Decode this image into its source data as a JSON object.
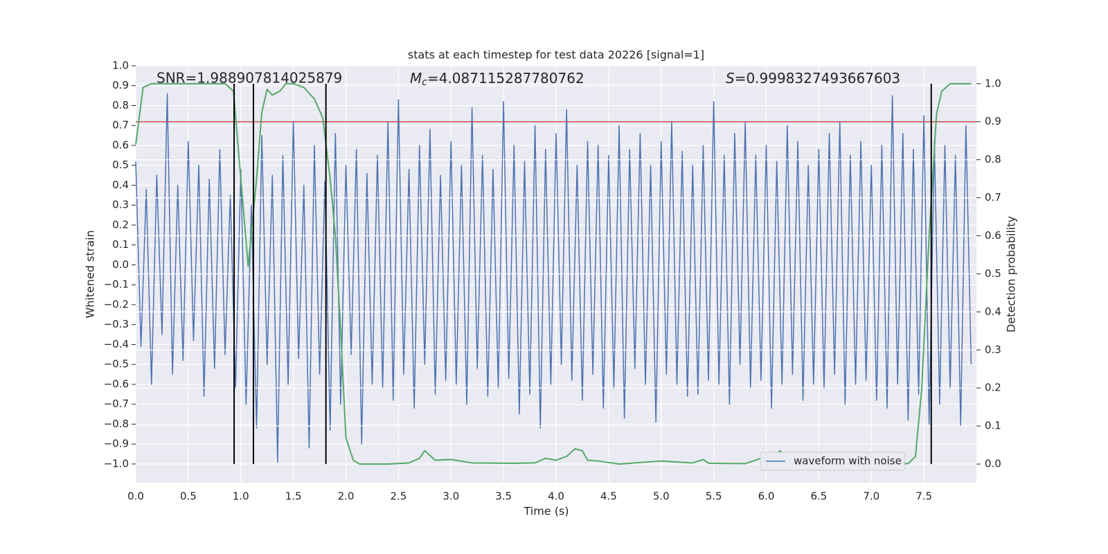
{
  "chart_data": {
    "type": "line",
    "title": "stats at each timestep for test data 20226 [signal=1]",
    "xlabel": "Time (s)",
    "ylabel": "Whitened strain",
    "y2label": "Detection probability",
    "annotations": [
      {
        "text": "SNR=1.988907814025879"
      },
      {
        "symbol": "M",
        "subscript": "c",
        "text": "=4.087115287780762"
      },
      {
        "symbol": "S",
        "text": "=0.9998327493667603"
      }
    ],
    "xlim": [
      0,
      8
    ],
    "ylim": [
      -1.094,
      1.0
    ],
    "y2lim": [
      -0.049,
      1.047
    ],
    "xticks": [
      {
        "value": 0,
        "label": "0.0"
      },
      0.5,
      {
        "value": 1,
        "label": "1.0"
      },
      1.5,
      {
        "value": 2,
        "label": "2.0"
      },
      2.5,
      {
        "value": 3,
        "label": "3.0"
      },
      3.5,
      {
        "value": 4,
        "label": "4.0"
      },
      4.5,
      {
        "value": 5,
        "label": "5.0"
      },
      5.5,
      {
        "value": 6,
        "label": "6.0"
      },
      6.5,
      {
        "value": 7,
        "label": "7.0"
      },
      7.5
    ],
    "yticks": [
      {
        "value": 1,
        "label": "1.0"
      },
      0.9,
      0.8,
      0.7,
      0.6,
      0.5,
      0.4,
      0.3,
      0.2,
      0.1,
      {
        "value": 0,
        "label": "0.0"
      },
      {
        "value": -0.1,
        "label": "−0.1"
      },
      {
        "value": -0.2,
        "label": "−0.2"
      },
      {
        "value": -0.3,
        "label": "−0.3"
      },
      {
        "value": -0.4,
        "label": "−0.4"
      },
      {
        "value": -0.5,
        "label": "−0.5"
      },
      {
        "value": -0.6,
        "label": "−0.6"
      },
      {
        "value": -0.7,
        "label": "−0.7"
      },
      {
        "value": -0.8,
        "label": "−0.8"
      },
      {
        "value": -0.9,
        "label": "−0.9"
      },
      {
        "value": -1,
        "label": "−1.0"
      }
    ],
    "y2ticks": [
      {
        "value": 1,
        "label": "1.0"
      },
      0.9,
      0.8,
      0.7,
      0.6,
      0.5,
      0.4,
      0.3,
      0.2,
      0.1,
      {
        "value": 0,
        "label": "0.0"
      }
    ],
    "grid": true,
    "legend": "lower right",
    "series": [
      {
        "name": "waveform with noise",
        "color": "#4c72b0",
        "x": [
          0,
          0.05,
          0.1,
          0.15,
          0.2,
          0.25,
          0.3,
          0.35,
          0.4,
          0.45,
          0.5,
          0.55,
          0.6,
          0.65,
          0.7,
          0.75,
          0.8,
          0.85,
          0.9,
          0.95,
          1,
          1.05,
          1.1,
          1.15,
          1.2,
          1.25,
          1.3,
          1.35,
          1.4,
          1.45,
          1.5,
          1.55,
          1.6,
          1.65,
          1.7,
          1.75,
          1.8,
          1.85,
          1.9,
          1.95,
          2,
          2.05,
          2.1,
          2.15,
          2.2,
          2.25,
          2.3,
          2.35,
          2.4,
          2.45,
          2.5,
          2.55,
          2.6,
          2.65,
          2.7,
          2.75,
          2.8,
          2.85,
          2.9,
          2.95,
          3,
          3.05,
          3.1,
          3.15,
          3.2,
          3.25,
          3.3,
          3.35,
          3.4,
          3.45,
          3.5,
          3.55,
          3.6,
          3.65,
          3.7,
          3.75,
          3.8,
          3.85,
          3.9,
          3.95,
          4,
          4.05,
          4.1,
          4.15,
          4.2,
          4.25,
          4.3,
          4.35,
          4.4,
          4.45,
          4.5,
          4.55,
          4.6,
          4.65,
          4.7,
          4.75,
          4.8,
          4.85,
          4.9,
          4.95,
          5,
          5.05,
          5.1,
          5.15,
          5.2,
          5.25,
          5.3,
          5.35,
          5.4,
          5.45,
          5.5,
          5.55,
          5.6,
          5.65,
          5.7,
          5.75,
          5.8,
          5.85,
          5.9,
          5.95,
          6,
          6.05,
          6.1,
          6.15,
          6.2,
          6.25,
          6.3,
          6.35,
          6.4,
          6.45,
          6.5,
          6.55,
          6.6,
          6.65,
          6.7,
          6.75,
          6.8,
          6.85,
          6.9,
          6.95,
          7,
          7.05,
          7.1,
          7.15,
          7.2,
          7.25,
          7.3,
          7.35,
          7.4,
          7.45,
          7.5,
          7.55,
          7.6,
          7.65,
          7.7,
          7.75,
          7.8,
          7.85,
          7.9,
          7.95
        ],
        "values": [
          0.52,
          -0.41,
          0.38,
          -0.6,
          0.45,
          -0.35,
          0.86,
          -0.55,
          0.4,
          -0.48,
          0.62,
          -0.38,
          0.5,
          -0.66,
          0.43,
          -0.52,
          0.58,
          -0.45,
          0.35,
          -0.62,
          0.48,
          -0.7,
          0.3,
          -0.82,
          0.65,
          -0.5,
          0.45,
          -0.99,
          0.55,
          -0.6,
          0.72,
          -0.47,
          0.4,
          -0.92,
          0.6,
          -0.55,
          0.42,
          -0.83,
          0.66,
          -0.7,
          0.5,
          -0.45,
          0.58,
          -0.9,
          0.46,
          -0.6,
          0.55,
          -0.62,
          0.72,
          -0.68,
          0.83,
          -0.55,
          0.48,
          -0.72,
          0.6,
          -0.5,
          0.68,
          -0.65,
          0.45,
          -0.58,
          0.62,
          -0.6,
          0.5,
          -0.7,
          0.79,
          -0.52,
          0.55,
          -0.66,
          0.48,
          -0.62,
          0.82,
          -0.57,
          0.6,
          -0.75,
          0.52,
          -0.65,
          0.7,
          -0.82,
          0.58,
          -0.6,
          0.66,
          -0.5,
          0.78,
          -0.58,
          0.5,
          -0.68,
          0.62,
          -0.55,
          0.6,
          -0.72,
          0.55,
          -0.62,
          0.7,
          -0.77,
          0.58,
          -0.52,
          0.66,
          -0.6,
          0.5,
          -0.79,
          0.62,
          -0.55,
          0.72,
          -0.6,
          0.57,
          -0.66,
          0.5,
          -0.65,
          0.6,
          -0.58,
          0.82,
          -0.6,
          0.55,
          -0.7,
          0.66,
          -0.5,
          0.72,
          -0.62,
          0.55,
          -0.58,
          0.6,
          -0.72,
          0.52,
          -0.6,
          0.7,
          -0.55,
          0.62,
          -0.68,
          0.5,
          -0.6,
          0.58,
          -0.62,
          0.66,
          -0.55,
          0.72,
          -0.7,
          0.55,
          -0.6,
          0.62,
          -0.58,
          0.5,
          -0.68,
          0.6,
          -0.72,
          0.85,
          -0.6,
          0.66,
          -0.78,
          0.58,
          -0.65,
          0.75,
          -0.8,
          0.62,
          -0.7,
          0.6,
          -0.62,
          0.55,
          -0.81,
          0.7,
          -0.5
        ]
      },
      {
        "color": "#55a868",
        "axis": "y2",
        "x": [
          0,
          0.07,
          0.15,
          0.85,
          0.93,
          1.0,
          1.07,
          1.15,
          1.2,
          1.25,
          1.3,
          1.37,
          1.43,
          1.5,
          1.6,
          1.7,
          1.78,
          1.85,
          1.9,
          1.95,
          2.0,
          2.07,
          2.13,
          2.4,
          2.6,
          2.7,
          2.75,
          2.85,
          3.0,
          3.2,
          3.6,
          3.8,
          3.9,
          4.0,
          4.1,
          4.18,
          4.25,
          4.3,
          4.4,
          4.6,
          5.0,
          5.3,
          5.4,
          5.45,
          5.8,
          5.95,
          6.05,
          6.13,
          6.25,
          6.4,
          6.7,
          6.82,
          6.9,
          7.1,
          7.35,
          7.42,
          7.48,
          7.55,
          7.62,
          7.67,
          7.75,
          7.95
        ],
        "values": [
          0.84,
          0.99,
          1.0,
          1.0,
          0.98,
          0.75,
          0.52,
          0.75,
          0.925,
          0.985,
          0.97,
          0.98,
          1.0,
          1.0,
          0.99,
          0.96,
          0.91,
          0.75,
          0.6,
          0.35,
          0.069,
          0.01,
          0.0,
          0.0,
          0.003,
          0.015,
          0.035,
          0.01,
          0.012,
          0.003,
          0.002,
          0.003,
          0.015,
          0.01,
          0.02,
          0.04,
          0.035,
          0.01,
          0.008,
          0.0,
          0.008,
          0.003,
          0.012,
          0.002,
          0.001,
          0.015,
          0.015,
          0.035,
          0.005,
          0.0,
          0.005,
          0.012,
          0.008,
          0.003,
          0.001,
          0.02,
          0.2,
          0.6,
          0.92,
          0.98,
          1.0,
          1.0
        ]
      }
    ],
    "hlines": [
      {
        "value": 0.9,
        "axis": "y2",
        "color": "#c44e52"
      }
    ],
    "vlines": {
      "x": [
        0.936,
        1.12,
        1.81,
        7.57
      ],
      "y2range": [
        0,
        1
      ],
      "color": "#000000"
    }
  }
}
